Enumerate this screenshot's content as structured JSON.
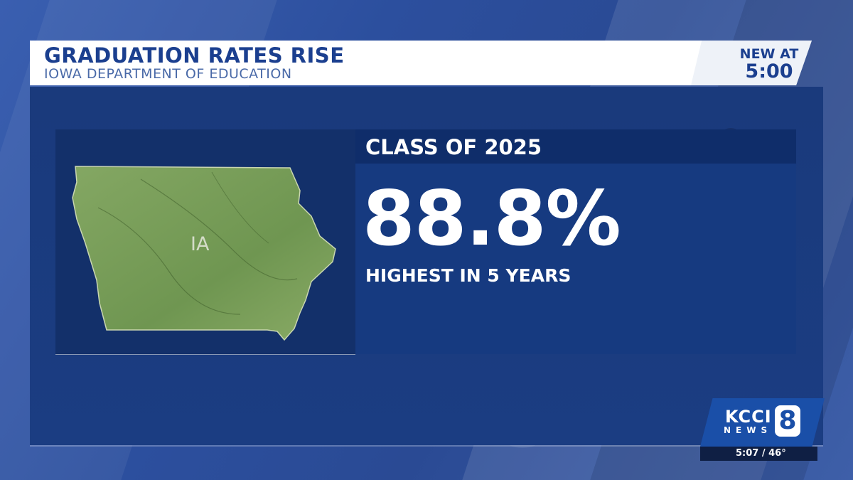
{
  "header": {
    "title": "GRADUATION RATES RISE",
    "subtitle": "IOWA DEPARTMENT OF EDUCATION",
    "tag_line1": "NEW AT",
    "tag_line2": "5:00"
  },
  "map": {
    "state_label": "IA",
    "icon": "iowa-state-map"
  },
  "stat": {
    "heading": "CLASS OF 2025",
    "value": "88.8%",
    "caption": "HIGHEST IN 5 YEARS"
  },
  "station": {
    "call_letters": "KCCI",
    "news_label": "NEWS",
    "channel": "8"
  },
  "ticker": {
    "text": "5:07 / 46°"
  },
  "colors": {
    "brand_blue": "#1b3f8f",
    "panel_blue": "#163a80",
    "map_green": "#7fa05a"
  }
}
